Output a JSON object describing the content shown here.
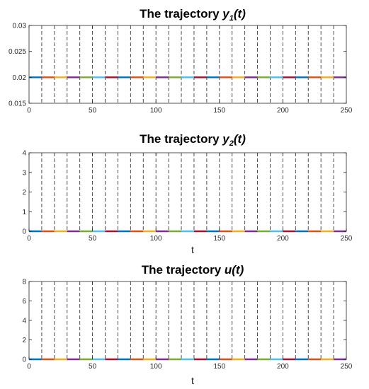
{
  "chart_data": [
    {
      "type": "line",
      "title": {
        "prefix": "The trajectory ",
        "var": "y",
        "sub": "1",
        "suffix": "(t)"
      },
      "xlabel": "",
      "ylabel": "",
      "xlim": [
        0,
        250
      ],
      "ylim": [
        0.015,
        0.03
      ],
      "xticks": [
        "0",
        "50",
        "100",
        "150",
        "200",
        "250"
      ],
      "yticks": [
        "0.015",
        "0.02",
        "0.025",
        "0.03"
      ],
      "grid": false,
      "legend": "none",
      "segment_length": 10,
      "boundaries": [
        10,
        20,
        30,
        40,
        50,
        60,
        70,
        80,
        90,
        100,
        110,
        120,
        130,
        140,
        150,
        160,
        170,
        180,
        190,
        200,
        210,
        220,
        230,
        240
      ],
      "segments": [
        {
          "x": [
            0,
            10
          ],
          "y": 0.02,
          "color": "#0072BD"
        },
        {
          "x": [
            10,
            20
          ],
          "y": 0.02,
          "color": "#D95319"
        },
        {
          "x": [
            20,
            30
          ],
          "y": 0.02,
          "color": "#EDB120"
        },
        {
          "x": [
            30,
            40
          ],
          "y": 0.02,
          "color": "#7E2F8E"
        },
        {
          "x": [
            40,
            50
          ],
          "y": 0.02,
          "color": "#77AC30"
        },
        {
          "x": [
            50,
            60
          ],
          "y": 0.02,
          "color": "#4DBEEE"
        },
        {
          "x": [
            60,
            70
          ],
          "y": 0.02,
          "color": "#A2142F"
        },
        {
          "x": [
            70,
            80
          ],
          "y": 0.02,
          "color": "#0072BD"
        },
        {
          "x": [
            80,
            90
          ],
          "y": 0.02,
          "color": "#D95319"
        },
        {
          "x": [
            90,
            100
          ],
          "y": 0.02,
          "color": "#EDB120"
        },
        {
          "x": [
            100,
            110
          ],
          "y": 0.02,
          "color": "#7E2F8E"
        },
        {
          "x": [
            110,
            120
          ],
          "y": 0.02,
          "color": "#77AC30"
        },
        {
          "x": [
            120,
            130
          ],
          "y": 0.02,
          "color": "#4DBEEE"
        },
        {
          "x": [
            130,
            140
          ],
          "y": 0.02,
          "color": "#A2142F"
        },
        {
          "x": [
            140,
            150
          ],
          "y": 0.02,
          "color": "#0072BD"
        },
        {
          "x": [
            150,
            160
          ],
          "y": 0.02,
          "color": "#D95319"
        },
        {
          "x": [
            160,
            170
          ],
          "y": 0.02,
          "color": "#EDB120"
        },
        {
          "x": [
            170,
            180
          ],
          "y": 0.02,
          "color": "#7E2F8E"
        },
        {
          "x": [
            180,
            190
          ],
          "y": 0.02,
          "color": "#77AC30"
        },
        {
          "x": [
            190,
            200
          ],
          "y": 0.02,
          "color": "#4DBEEE"
        },
        {
          "x": [
            200,
            210
          ],
          "y": 0.02,
          "color": "#A2142F"
        },
        {
          "x": [
            210,
            220
          ],
          "y": 0.02,
          "color": "#0072BD"
        },
        {
          "x": [
            220,
            230
          ],
          "y": 0.02,
          "color": "#D95319"
        },
        {
          "x": [
            230,
            240
          ],
          "y": 0.02,
          "color": "#EDB120"
        },
        {
          "x": [
            240,
            250
          ],
          "y": 0.02,
          "color": "#7E2F8E"
        }
      ]
    },
    {
      "type": "line",
      "title": {
        "prefix": "The trajectory ",
        "var": "y",
        "sub": "2",
        "suffix": "(t)"
      },
      "xlabel": "t",
      "ylabel": "",
      "xlim": [
        0,
        250
      ],
      "ylim": [
        0,
        4
      ],
      "xticks": [
        "0",
        "50",
        "100",
        "150",
        "200",
        "250"
      ],
      "yticks": [
        "0",
        "1",
        "2",
        "3",
        "4"
      ],
      "grid": false,
      "legend": "none",
      "segment_length": 10,
      "boundaries": [
        10,
        20,
        30,
        40,
        50,
        60,
        70,
        80,
        90,
        100,
        110,
        120,
        130,
        140,
        150,
        160,
        170,
        180,
        190,
        200,
        210,
        220,
        230,
        240
      ],
      "segments": [
        {
          "x": [
            0,
            10
          ],
          "y": 0,
          "color": "#0072BD"
        },
        {
          "x": [
            10,
            20
          ],
          "y": 0,
          "color": "#D95319"
        },
        {
          "x": [
            20,
            30
          ],
          "y": 0,
          "color": "#EDB120"
        },
        {
          "x": [
            30,
            40
          ],
          "y": 0,
          "color": "#7E2F8E"
        },
        {
          "x": [
            40,
            50
          ],
          "y": 0,
          "color": "#77AC30"
        },
        {
          "x": [
            50,
            60
          ],
          "y": 0,
          "color": "#4DBEEE"
        },
        {
          "x": [
            60,
            70
          ],
          "y": 0,
          "color": "#A2142F"
        },
        {
          "x": [
            70,
            80
          ],
          "y": 0,
          "color": "#0072BD"
        },
        {
          "x": [
            80,
            90
          ],
          "y": 0,
          "color": "#D95319"
        },
        {
          "x": [
            90,
            100
          ],
          "y": 0,
          "color": "#EDB120"
        },
        {
          "x": [
            100,
            110
          ],
          "y": 0,
          "color": "#7E2F8E"
        },
        {
          "x": [
            110,
            120
          ],
          "y": 0,
          "color": "#77AC30"
        },
        {
          "x": [
            120,
            130
          ],
          "y": 0,
          "color": "#4DBEEE"
        },
        {
          "x": [
            130,
            140
          ],
          "y": 0,
          "color": "#A2142F"
        },
        {
          "x": [
            140,
            150
          ],
          "y": 0,
          "color": "#0072BD"
        },
        {
          "x": [
            150,
            160
          ],
          "y": 0,
          "color": "#D95319"
        },
        {
          "x": [
            160,
            170
          ],
          "y": 0,
          "color": "#EDB120"
        },
        {
          "x": [
            170,
            180
          ],
          "y": 0,
          "color": "#7E2F8E"
        },
        {
          "x": [
            180,
            190
          ],
          "y": 0,
          "color": "#77AC30"
        },
        {
          "x": [
            190,
            200
          ],
          "y": 0,
          "color": "#4DBEEE"
        },
        {
          "x": [
            200,
            210
          ],
          "y": 0,
          "color": "#A2142F"
        },
        {
          "x": [
            210,
            220
          ],
          "y": 0,
          "color": "#0072BD"
        },
        {
          "x": [
            220,
            230
          ],
          "y": 0,
          "color": "#D95319"
        },
        {
          "x": [
            230,
            240
          ],
          "y": 0,
          "color": "#EDB120"
        },
        {
          "x": [
            240,
            250
          ],
          "y": 0,
          "color": "#7E2F8E"
        }
      ]
    },
    {
      "type": "line",
      "title": {
        "prefix": "The trajectory ",
        "var": "u(t)",
        "sub": "",
        "suffix": ""
      },
      "xlabel": "t",
      "ylabel": "",
      "xlim": [
        0,
        250
      ],
      "ylim": [
        0,
        8
      ],
      "xticks": [
        "0",
        "50",
        "100",
        "150",
        "200",
        "250"
      ],
      "yticks": [
        "0",
        "2",
        "4",
        "6",
        "8"
      ],
      "grid": false,
      "legend": "none",
      "segment_length": 10,
      "boundaries": [
        10,
        20,
        30,
        40,
        50,
        60,
        70,
        80,
        90,
        100,
        110,
        120,
        130,
        140,
        150,
        160,
        170,
        180,
        190,
        200,
        210,
        220,
        230,
        240
      ],
      "segments": [
        {
          "x": [
            0,
            10
          ],
          "y": 0,
          "color": "#0072BD"
        },
        {
          "x": [
            10,
            20
          ],
          "y": 0,
          "color": "#D95319"
        },
        {
          "x": [
            20,
            30
          ],
          "y": 0,
          "color": "#EDB120"
        },
        {
          "x": [
            30,
            40
          ],
          "y": 0,
          "color": "#7E2F8E"
        },
        {
          "x": [
            40,
            50
          ],
          "y": 0,
          "color": "#77AC30"
        },
        {
          "x": [
            50,
            60
          ],
          "y": 0,
          "color": "#4DBEEE"
        },
        {
          "x": [
            60,
            70
          ],
          "y": 0,
          "color": "#A2142F"
        },
        {
          "x": [
            70,
            80
          ],
          "y": 0,
          "color": "#0072BD"
        },
        {
          "x": [
            80,
            90
          ],
          "y": 0,
          "color": "#D95319"
        },
        {
          "x": [
            90,
            100
          ],
          "y": 0,
          "color": "#EDB120"
        },
        {
          "x": [
            100,
            110
          ],
          "y": 0,
          "color": "#7E2F8E"
        },
        {
          "x": [
            110,
            120
          ],
          "y": 0,
          "color": "#77AC30"
        },
        {
          "x": [
            120,
            130
          ],
          "y": 0,
          "color": "#4DBEEE"
        },
        {
          "x": [
            130,
            140
          ],
          "y": 0,
          "color": "#A2142F"
        },
        {
          "x": [
            140,
            150
          ],
          "y": 0,
          "color": "#0072BD"
        },
        {
          "x": [
            150,
            160
          ],
          "y": 0,
          "color": "#D95319"
        },
        {
          "x": [
            160,
            170
          ],
          "y": 0,
          "color": "#EDB120"
        },
        {
          "x": [
            170,
            180
          ],
          "y": 0,
          "color": "#7E2F8E"
        },
        {
          "x": [
            180,
            190
          ],
          "y": 0,
          "color": "#77AC30"
        },
        {
          "x": [
            190,
            200
          ],
          "y": 0,
          "color": "#4DBEEE"
        },
        {
          "x": [
            200,
            210
          ],
          "y": 0,
          "color": "#A2142F"
        },
        {
          "x": [
            210,
            220
          ],
          "y": 0,
          "color": "#0072BD"
        },
        {
          "x": [
            220,
            230
          ],
          "y": 0,
          "color": "#D95319"
        },
        {
          "x": [
            230,
            240
          ],
          "y": 0,
          "color": "#EDB120"
        },
        {
          "x": [
            240,
            250
          ],
          "y": 0,
          "color": "#7E2F8E"
        }
      ]
    }
  ]
}
